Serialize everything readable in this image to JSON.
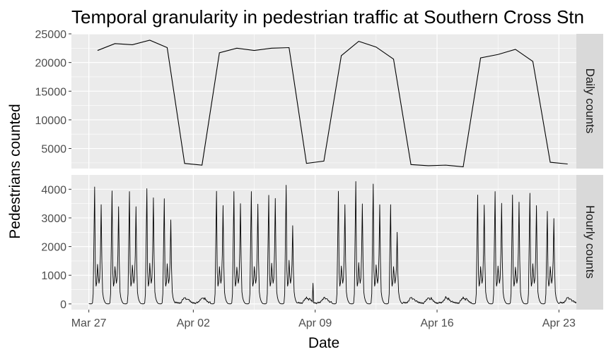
{
  "chart_data": {
    "type": "line",
    "title": "Temporal granularity in pedestrian traffic at Southern Cross Stn",
    "xlabel": "Date",
    "ylabel": "Pedestrians counted",
    "x_ticks": [
      "Mar 27",
      "Apr 02",
      "Apr 09",
      "Apr 16",
      "Apr 23"
    ],
    "x_tick_dates": [
      "2017-03-27",
      "2017-04-02",
      "2017-04-09",
      "2017-04-16",
      "2017-04-23"
    ],
    "xlim": [
      "2017-03-26",
      "2017-04-24"
    ],
    "grid": true,
    "colors": {
      "panel_bg": "#ebebeb",
      "grid": "#ffffff",
      "strip_bg": "#d9d9d9",
      "line": "#000000",
      "text": "#1a1a1a"
    },
    "panels": [
      {
        "strip_label": "Daily counts",
        "ylim": [
          1500,
          25000
        ],
        "y_ticks": [
          5000,
          10000,
          15000,
          20000,
          25000
        ],
        "series": [
          {
            "x": [
              "2017-03-27",
              "2017-03-28",
              "2017-03-29",
              "2017-03-30",
              "2017-03-31",
              "2017-04-01",
              "2017-04-02",
              "2017-04-03",
              "2017-04-04",
              "2017-04-05",
              "2017-04-06",
              "2017-04-07",
              "2017-04-08",
              "2017-04-09",
              "2017-04-10",
              "2017-04-11",
              "2017-04-12",
              "2017-04-13",
              "2017-04-14",
              "2017-04-15",
              "2017-04-16",
              "2017-04-17",
              "2017-04-18",
              "2017-04-19",
              "2017-04-20",
              "2017-04-21",
              "2017-04-22",
              "2017-04-23"
            ],
            "y": [
              22100,
              23300,
              23100,
              23900,
              22600,
              2400,
              2100,
              21700,
              22500,
              22100,
              22500,
              22600,
              2400,
              2800,
              21200,
              23700,
              22700,
              20600,
              2200,
              2000,
              2100,
              1800,
              20800,
              21400,
              22300,
              20200,
              2600,
              2300
            ]
          }
        ]
      },
      {
        "strip_label": "Hourly counts",
        "ylim": [
          -200,
          4500
        ],
        "y_ticks": [
          0,
          1000,
          2000,
          3000,
          4000
        ],
        "weekday_profiles": [
          {
            "date": "2017-03-27",
            "am_peak": 4080,
            "midday": 1380,
            "pm_peak": 3460
          },
          {
            "date": "2017-03-28",
            "am_peak": 3940,
            "midday": 1300,
            "pm_peak": 3390
          },
          {
            "date": "2017-03-29",
            "am_peak": 3920,
            "midday": 1350,
            "pm_peak": 3390
          },
          {
            "date": "2017-03-30",
            "am_peak": 4020,
            "midday": 1420,
            "pm_peak": 3700
          },
          {
            "date": "2017-03-31",
            "am_peak": 3670,
            "midday": 1400,
            "pm_peak": 2930
          },
          {
            "date": "2017-04-03",
            "am_peak": 3930,
            "midday": 1300,
            "pm_peak": 3430
          },
          {
            "date": "2017-04-04",
            "am_peak": 3920,
            "midday": 1280,
            "pm_peak": 3500
          },
          {
            "date": "2017-04-05",
            "am_peak": 3920,
            "midday": 1300,
            "pm_peak": 3480
          },
          {
            "date": "2017-04-06",
            "am_peak": 3790,
            "midday": 1420,
            "pm_peak": 3680
          },
          {
            "date": "2017-04-07",
            "am_peak": 4140,
            "midday": 1520,
            "pm_peak": 2730
          },
          {
            "date": "2017-04-10",
            "am_peak": 3930,
            "midday": 1320,
            "pm_peak": 3460
          },
          {
            "date": "2017-04-11",
            "am_peak": 4270,
            "midday": 1440,
            "pm_peak": 3490
          },
          {
            "date": "2017-04-12",
            "am_peak": 4180,
            "midday": 1360,
            "pm_peak": 3460
          },
          {
            "date": "2017-04-13",
            "am_peak": 3460,
            "midday": 1300,
            "pm_peak": 2500
          },
          {
            "date": "2017-04-18",
            "am_peak": 3800,
            "midday": 1300,
            "pm_peak": 3450
          },
          {
            "date": "2017-04-19",
            "am_peak": 3920,
            "midday": 1320,
            "pm_peak": 3510
          },
          {
            "date": "2017-04-20",
            "am_peak": 3800,
            "midday": 1280,
            "pm_peak": 3550
          },
          {
            "date": "2017-04-21",
            "am_peak": 3860,
            "midday": 1400,
            "pm_peak": 3430
          },
          {
            "date": "2017-04-22",
            "am_peak": 3230,
            "midday": 1300,
            "pm_peak": 2980
          }
        ],
        "weekend_days": [
          "2017-04-01",
          "2017-04-02",
          "2017-04-08",
          "2017-04-09",
          "2017-04-14",
          "2017-04-15",
          "2017-04-16",
          "2017-04-17",
          "2017-04-23",
          "2017-04-24"
        ],
        "weekend_peak": 230,
        "night_level": 10,
        "event_spikes": [
          {
            "time": "2017-04-08T21:00",
            "value": 720
          }
        ],
        "series_start": "2017-03-27",
        "series_end": "2017-04-24"
      }
    ]
  }
}
